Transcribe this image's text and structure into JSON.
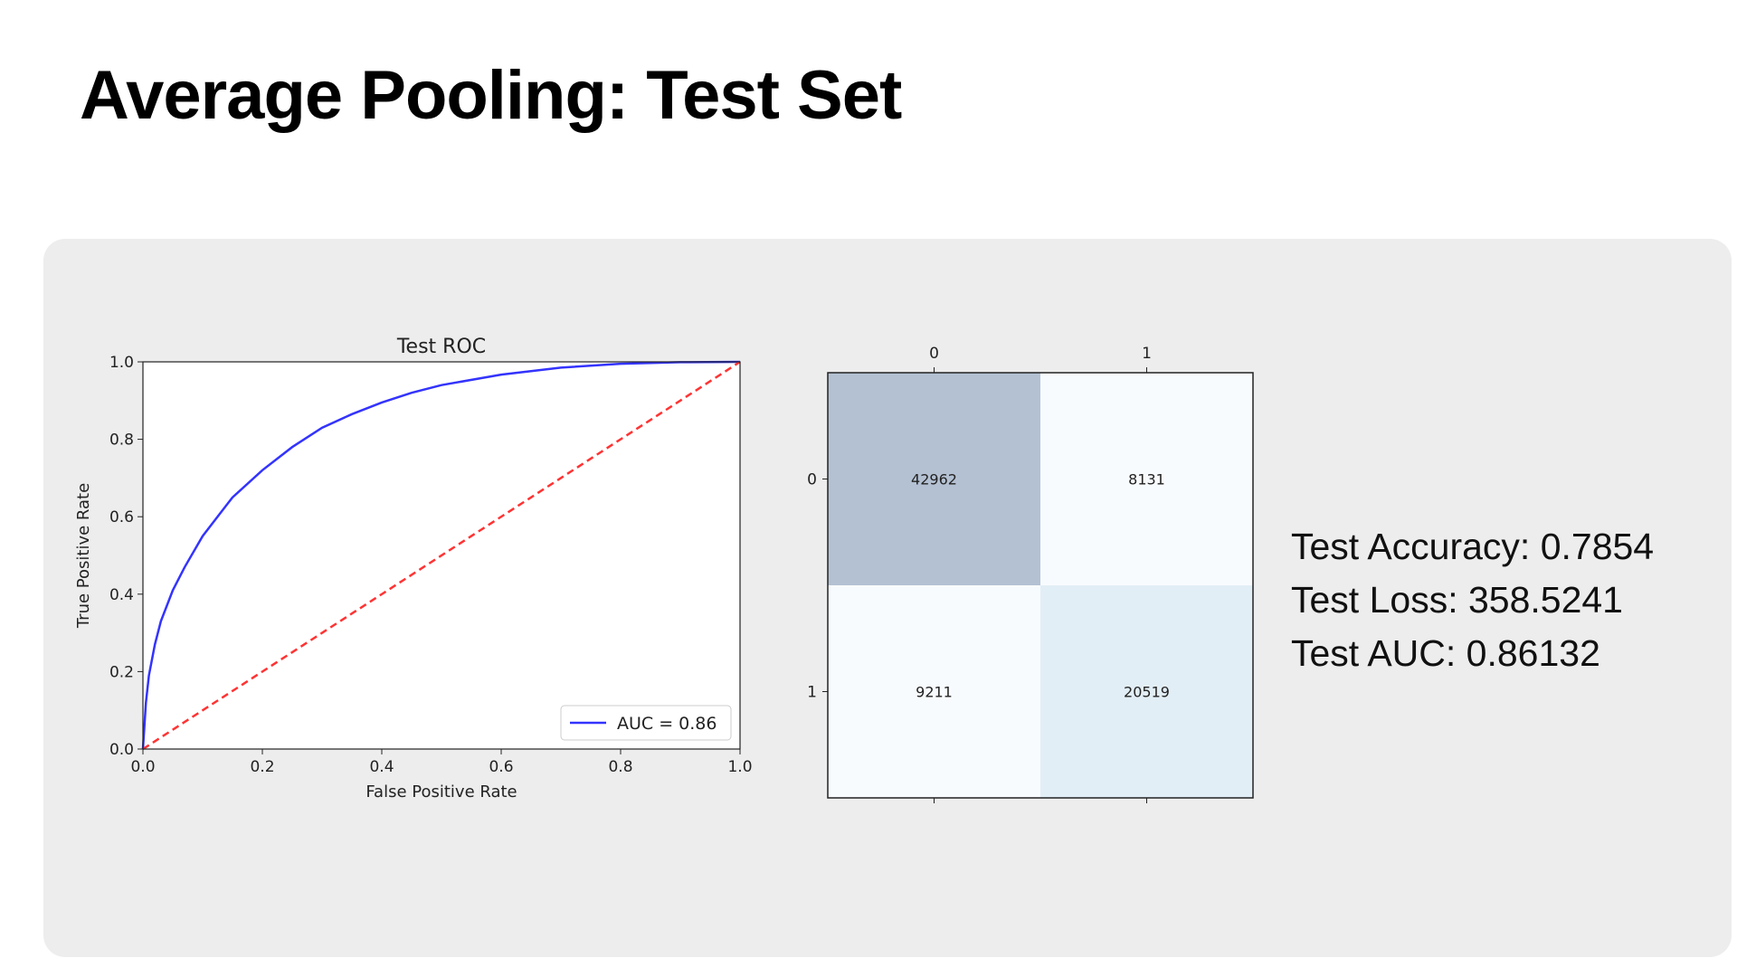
{
  "slide": {
    "title": "Average Pooling: Test Set"
  },
  "metrics": {
    "accuracy": "Test Accuracy: 0.7854",
    "loss": "Test Loss: 358.5241",
    "auc": "Test AUC: 0.86132"
  },
  "colors": {
    "roc_line": "#3333ff",
    "diagonal": "#ff3333",
    "cm_high": "#b4c1d3",
    "cm_mid": "#e2eef6",
    "cm_low": "#f8fbfe",
    "panel": "#ededed"
  },
  "chart_data": [
    {
      "type": "line",
      "title": "Test ROC",
      "xlabel": "False Positive Rate",
      "ylabel": "True Positive Rate",
      "xlim": [
        0.0,
        1.0
      ],
      "ylim": [
        0.0,
        1.0
      ],
      "xticks": [
        "0.0",
        "0.2",
        "0.4",
        "0.6",
        "0.8",
        "1.0"
      ],
      "yticks": [
        "0.0",
        "0.2",
        "0.4",
        "0.6",
        "0.8",
        "1.0"
      ],
      "legend_position": "lower-right",
      "grid": false,
      "series": [
        {
          "name": "AUC = 0.86",
          "style": "solid",
          "x": [
            0.0,
            0.005,
            0.01,
            0.02,
            0.03,
            0.05,
            0.07,
            0.1,
            0.13,
            0.15,
            0.2,
            0.25,
            0.3,
            0.35,
            0.4,
            0.45,
            0.5,
            0.6,
            0.7,
            0.8,
            0.9,
            1.0
          ],
          "y": [
            0.0,
            0.12,
            0.19,
            0.27,
            0.33,
            0.41,
            0.47,
            0.55,
            0.61,
            0.65,
            0.72,
            0.78,
            0.83,
            0.865,
            0.895,
            0.92,
            0.94,
            0.967,
            0.985,
            0.995,
            0.999,
            1.0
          ]
        },
        {
          "name": "",
          "style": "dashed",
          "x": [
            0.0,
            1.0
          ],
          "y": [
            0.0,
            1.0
          ]
        }
      ]
    },
    {
      "type": "heatmap",
      "title": "",
      "col_labels": [
        "0",
        "1"
      ],
      "row_labels": [
        "0",
        "1"
      ],
      "values": [
        [
          42962,
          8131
        ],
        [
          9211,
          20519
        ]
      ]
    }
  ]
}
